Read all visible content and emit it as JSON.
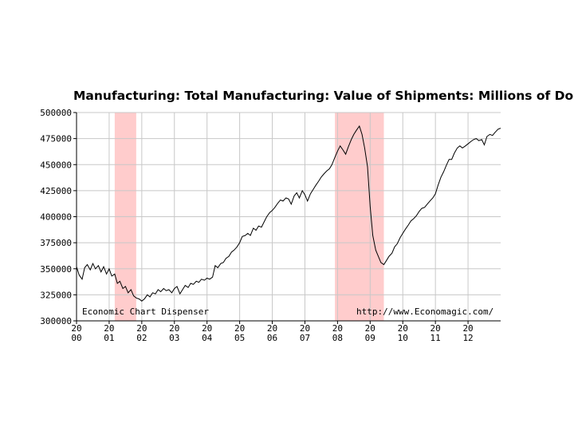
{
  "chart_data": {
    "type": "line",
    "title": "Manufacturing: Total Manufacturing: Value of Shipments: Millions of Dol",
    "xlabel": "",
    "ylabel": "",
    "ylim": [
      300000,
      500000
    ],
    "xlim": [
      2000,
      2013
    ],
    "y_ticks": [
      {
        "value": 500000,
        "label": "500000"
      },
      {
        "value": 475000,
        "label": "475000"
      },
      {
        "value": 450000,
        "label": "450000"
      },
      {
        "value": 425000,
        "label": "425000"
      },
      {
        "value": 400000,
        "label": "400000"
      },
      {
        "value": 375000,
        "label": "375000"
      },
      {
        "value": 350000,
        "label": "350000"
      },
      {
        "value": 325000,
        "label": "325000"
      },
      {
        "value": 300000,
        "label": "300000"
      }
    ],
    "x_ticks": [
      {
        "value": 2000,
        "top": "20",
        "bottom": "00"
      },
      {
        "value": 2001,
        "top": "20",
        "bottom": "01"
      },
      {
        "value": 2002,
        "top": "20",
        "bottom": "02"
      },
      {
        "value": 2003,
        "top": "20",
        "bottom": "03"
      },
      {
        "value": 2004,
        "top": "20",
        "bottom": "04"
      },
      {
        "value": 2005,
        "top": "20",
        "bottom": "05"
      },
      {
        "value": 2006,
        "top": "20",
        "bottom": "06"
      },
      {
        "value": 2007,
        "top": "20",
        "bottom": "07"
      },
      {
        "value": 2008,
        "top": "20",
        "bottom": "08"
      },
      {
        "value": 2009,
        "top": "20",
        "bottom": "09"
      },
      {
        "value": 2010,
        "top": "20",
        "bottom": "10"
      },
      {
        "value": 2011,
        "top": "20",
        "bottom": "11"
      },
      {
        "value": 2012,
        "top": "20",
        "bottom": "12"
      }
    ],
    "recessions": [
      {
        "start": 2001.17,
        "end": 2001.83
      },
      {
        "start": 2007.92,
        "end": 2009.42
      }
    ],
    "series": [
      {
        "name": "Value of Shipments",
        "points": [
          [
            2000.0,
            352000
          ],
          [
            2000.08,
            344000
          ],
          [
            2000.17,
            340000
          ],
          [
            2000.25,
            351000
          ],
          [
            2000.33,
            354000
          ],
          [
            2000.42,
            349000
          ],
          [
            2000.5,
            355000
          ],
          [
            2000.58,
            350000
          ],
          [
            2000.67,
            353000
          ],
          [
            2000.75,
            347000
          ],
          [
            2000.83,
            352000
          ],
          [
            2000.92,
            345000
          ],
          [
            2001.0,
            350000
          ],
          [
            2001.08,
            343000
          ],
          [
            2001.17,
            345000
          ],
          [
            2001.25,
            336000
          ],
          [
            2001.33,
            338000
          ],
          [
            2001.42,
            331000
          ],
          [
            2001.5,
            333000
          ],
          [
            2001.58,
            327000
          ],
          [
            2001.67,
            330000
          ],
          [
            2001.75,
            324000
          ],
          [
            2001.83,
            322000
          ],
          [
            2001.92,
            321000
          ],
          [
            2002.0,
            319000
          ],
          [
            2002.08,
            321000
          ],
          [
            2002.17,
            325000
          ],
          [
            2002.25,
            323000
          ],
          [
            2002.33,
            327000
          ],
          [
            2002.42,
            326000
          ],
          [
            2002.5,
            330000
          ],
          [
            2002.58,
            328000
          ],
          [
            2002.67,
            331000
          ],
          [
            2002.75,
            329000
          ],
          [
            2002.83,
            330000
          ],
          [
            2002.92,
            327000
          ],
          [
            2003.0,
            331000
          ],
          [
            2003.08,
            333000
          ],
          [
            2003.17,
            326000
          ],
          [
            2003.25,
            330000
          ],
          [
            2003.33,
            334000
          ],
          [
            2003.42,
            332000
          ],
          [
            2003.5,
            336000
          ],
          [
            2003.58,
            335000
          ],
          [
            2003.67,
            338000
          ],
          [
            2003.75,
            337000
          ],
          [
            2003.83,
            340000
          ],
          [
            2003.92,
            339000
          ],
          [
            2004.0,
            341000
          ],
          [
            2004.08,
            340000
          ],
          [
            2004.17,
            342000
          ],
          [
            2004.25,
            353000
          ],
          [
            2004.33,
            351000
          ],
          [
            2004.42,
            355000
          ],
          [
            2004.5,
            356000
          ],
          [
            2004.58,
            360000
          ],
          [
            2004.67,
            362000
          ],
          [
            2004.75,
            366000
          ],
          [
            2004.83,
            368000
          ],
          [
            2004.92,
            371000
          ],
          [
            2005.0,
            375000
          ],
          [
            2005.08,
            381000
          ],
          [
            2005.17,
            382000
          ],
          [
            2005.25,
            384000
          ],
          [
            2005.33,
            382000
          ],
          [
            2005.42,
            389000
          ],
          [
            2005.5,
            387000
          ],
          [
            2005.58,
            391000
          ],
          [
            2005.67,
            390000
          ],
          [
            2005.75,
            395000
          ],
          [
            2005.83,
            400000
          ],
          [
            2005.92,
            404000
          ],
          [
            2006.0,
            406000
          ],
          [
            2006.08,
            409000
          ],
          [
            2006.17,
            413000
          ],
          [
            2006.25,
            416000
          ],
          [
            2006.33,
            415000
          ],
          [
            2006.42,
            418000
          ],
          [
            2006.5,
            417000
          ],
          [
            2006.58,
            412000
          ],
          [
            2006.67,
            420000
          ],
          [
            2006.75,
            423000
          ],
          [
            2006.83,
            418000
          ],
          [
            2006.92,
            425000
          ],
          [
            2007.0,
            421000
          ],
          [
            2007.08,
            415000
          ],
          [
            2007.17,
            422000
          ],
          [
            2007.25,
            426000
          ],
          [
            2007.33,
            430000
          ],
          [
            2007.42,
            434000
          ],
          [
            2007.5,
            438000
          ],
          [
            2007.58,
            441000
          ],
          [
            2007.67,
            444000
          ],
          [
            2007.75,
            446000
          ],
          [
            2007.83,
            450000
          ],
          [
            2007.92,
            457000
          ],
          [
            2008.0,
            463000
          ],
          [
            2008.08,
            468000
          ],
          [
            2008.17,
            464000
          ],
          [
            2008.25,
            460000
          ],
          [
            2008.33,
            467000
          ],
          [
            2008.42,
            474000
          ],
          [
            2008.5,
            479000
          ],
          [
            2008.58,
            483000
          ],
          [
            2008.67,
            487000
          ],
          [
            2008.75,
            479000
          ],
          [
            2008.83,
            466000
          ],
          [
            2008.92,
            448000
          ],
          [
            2009.0,
            410000
          ],
          [
            2009.08,
            382000
          ],
          [
            2009.17,
            368000
          ],
          [
            2009.25,
            362000
          ],
          [
            2009.33,
            356000
          ],
          [
            2009.42,
            354000
          ],
          [
            2009.5,
            358000
          ],
          [
            2009.58,
            362000
          ],
          [
            2009.67,
            365000
          ],
          [
            2009.75,
            371000
          ],
          [
            2009.83,
            374000
          ],
          [
            2009.92,
            380000
          ],
          [
            2010.0,
            384000
          ],
          [
            2010.08,
            388000
          ],
          [
            2010.17,
            392000
          ],
          [
            2010.25,
            396000
          ],
          [
            2010.33,
            398000
          ],
          [
            2010.42,
            401000
          ],
          [
            2010.5,
            405000
          ],
          [
            2010.58,
            408000
          ],
          [
            2010.67,
            409000
          ],
          [
            2010.75,
            412000
          ],
          [
            2010.83,
            415000
          ],
          [
            2010.92,
            418000
          ],
          [
            2011.0,
            422000
          ],
          [
            2011.08,
            430000
          ],
          [
            2011.17,
            438000
          ],
          [
            2011.25,
            443000
          ],
          [
            2011.33,
            449000
          ],
          [
            2011.42,
            455000
          ],
          [
            2011.5,
            455000
          ],
          [
            2011.58,
            461000
          ],
          [
            2011.67,
            466000
          ],
          [
            2011.75,
            468000
          ],
          [
            2011.83,
            466000
          ],
          [
            2011.92,
            468000
          ],
          [
            2012.0,
            470000
          ],
          [
            2012.08,
            472000
          ],
          [
            2012.17,
            474000
          ],
          [
            2012.25,
            475000
          ],
          [
            2012.33,
            473000
          ],
          [
            2012.42,
            474000
          ],
          [
            2012.5,
            469000
          ],
          [
            2012.58,
            477000
          ],
          [
            2012.67,
            479000
          ],
          [
            2012.75,
            478000
          ],
          [
            2012.83,
            481000
          ],
          [
            2012.92,
            484000
          ],
          [
            2013.0,
            485000
          ]
        ]
      }
    ],
    "annotations": {
      "left": "Economic Chart Dispenser",
      "right": "http://www.Economagic.com/"
    },
    "colors": {
      "recession_fill": "#ffcccc",
      "grid": "#c8c8c8",
      "line": "#000000",
      "background": "#ffffff"
    }
  }
}
